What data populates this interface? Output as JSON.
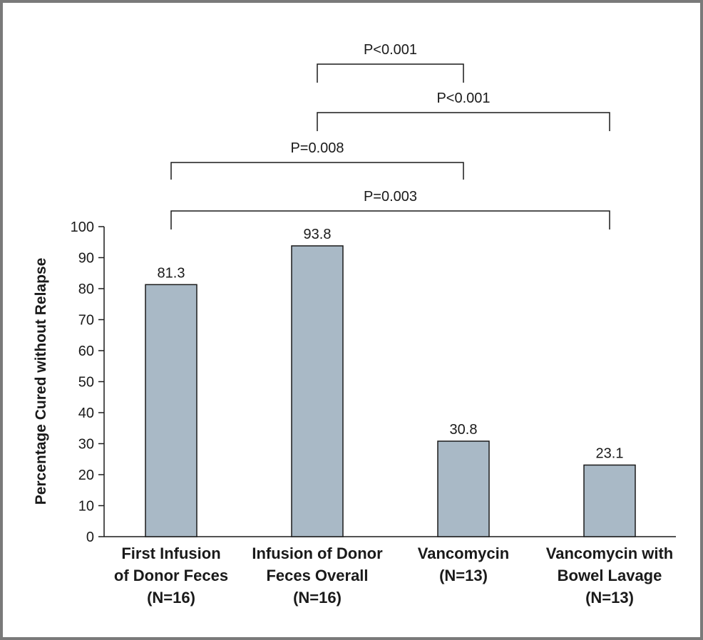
{
  "chart_data": {
    "type": "bar",
    "ylabel": "Percentage Cured without Relapse",
    "ylim": [
      0,
      100
    ],
    "yticks": [
      0,
      10,
      20,
      30,
      40,
      50,
      60,
      70,
      80,
      90,
      100
    ],
    "categories": [
      [
        "First Infusion",
        "of Donor Feces",
        "(N=16)"
      ],
      [
        "Infusion of Donor",
        "Feces Overall",
        "(N=16)"
      ],
      [
        "Vancomycin",
        "(N=13)"
      ],
      [
        "Vancomycin with",
        "Bowel Lavage",
        "(N=13)"
      ]
    ],
    "values": [
      81.3,
      93.8,
      30.8,
      23.1
    ],
    "value_labels": [
      "81.3",
      "93.8",
      "30.8",
      "23.1"
    ],
    "bar_color": "#a9b9c6",
    "comparisons": [
      {
        "from": 1,
        "to": 2,
        "label": "P<0.001"
      },
      {
        "from": 1,
        "to": 3,
        "label": "P<0.001"
      },
      {
        "from": 0,
        "to": 2,
        "label": "P=0.008"
      },
      {
        "from": 0,
        "to": 3,
        "label": "P=0.003"
      }
    ]
  }
}
